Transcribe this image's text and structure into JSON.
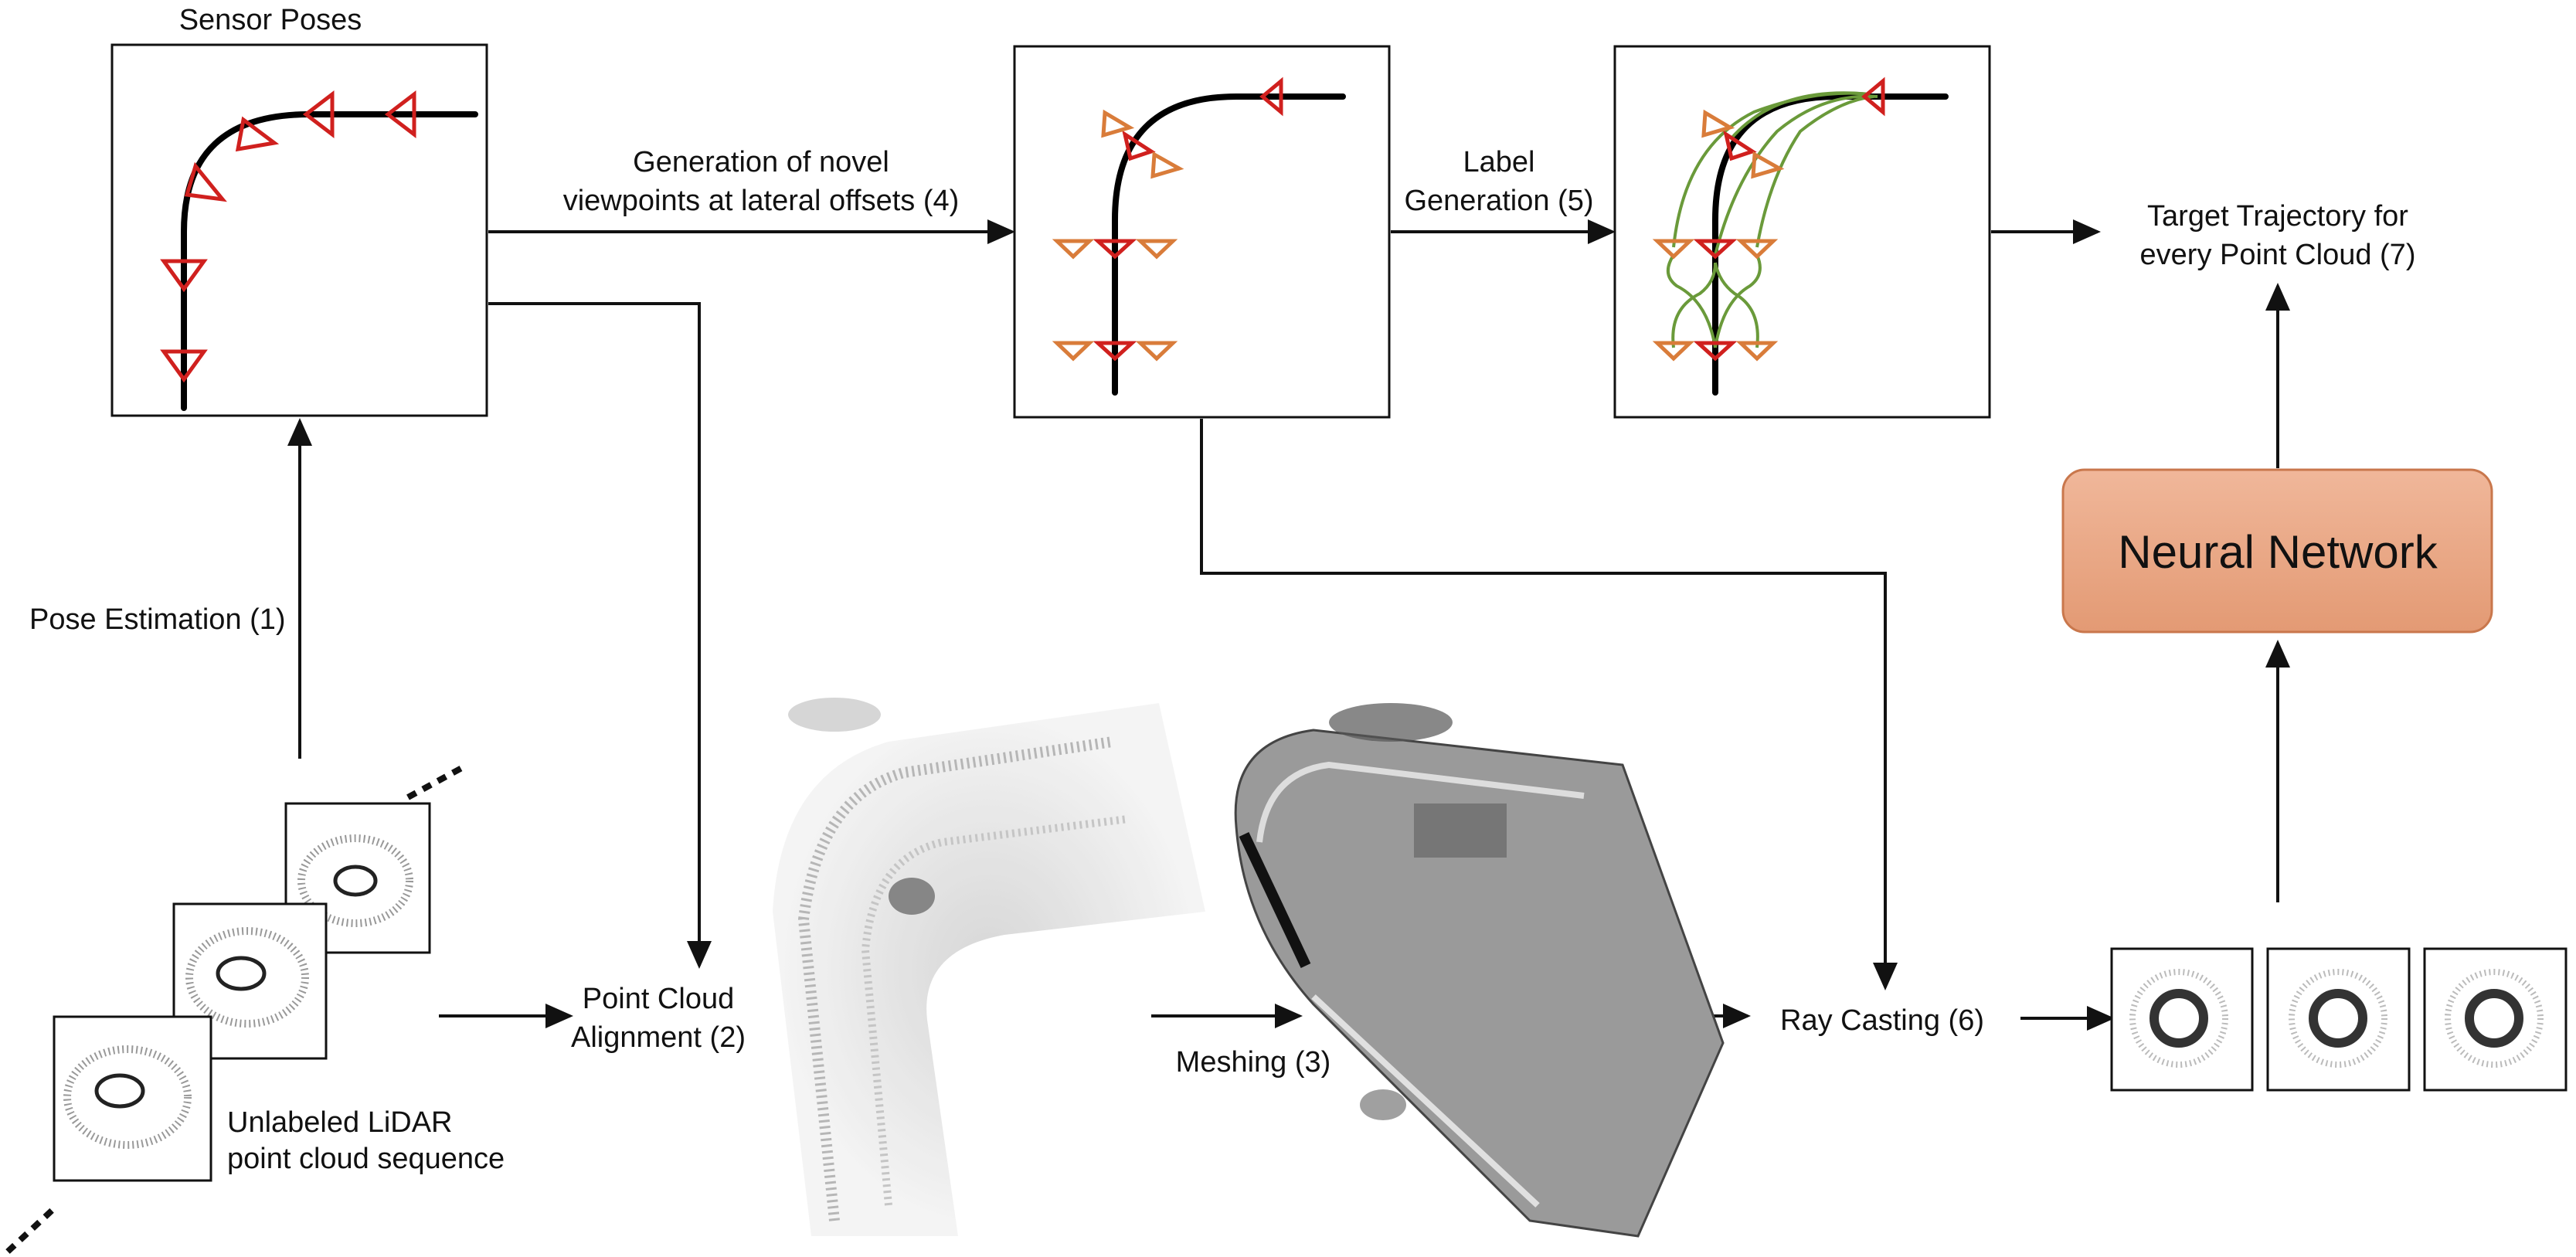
{
  "labels": {
    "sensor_poses": "Sensor Poses",
    "pose_estimation": "Pose Estimation (1)",
    "unlabeled_line1": "Unlabeled LiDAR",
    "unlabeled_line2": "point cloud sequence",
    "point_cloud_alignment_line1": "Point Cloud",
    "point_cloud_alignment_line2": "Alignment (2)",
    "meshing": "Meshing (3)",
    "novel_viewpoints_line1": "Generation of novel",
    "novel_viewpoints_line2": "viewpoints at lateral offsets (4)",
    "label_generation_line1": "Label",
    "label_generation_line2": "Generation (5)",
    "ray_casting": "Ray Casting (6)",
    "target_line1": "Target Trajectory for",
    "target_line2": "every Point Cloud (7)",
    "neural_network": "Neural Network"
  },
  "colors": {
    "pose_marker": "#d0201e",
    "offset_marker": "#d97c3a",
    "label_curve": "#6a9a3a",
    "nn_fill_top": "#f0b79a",
    "nn_fill_bottom": "#e39a74",
    "nn_border": "#c9774c"
  }
}
